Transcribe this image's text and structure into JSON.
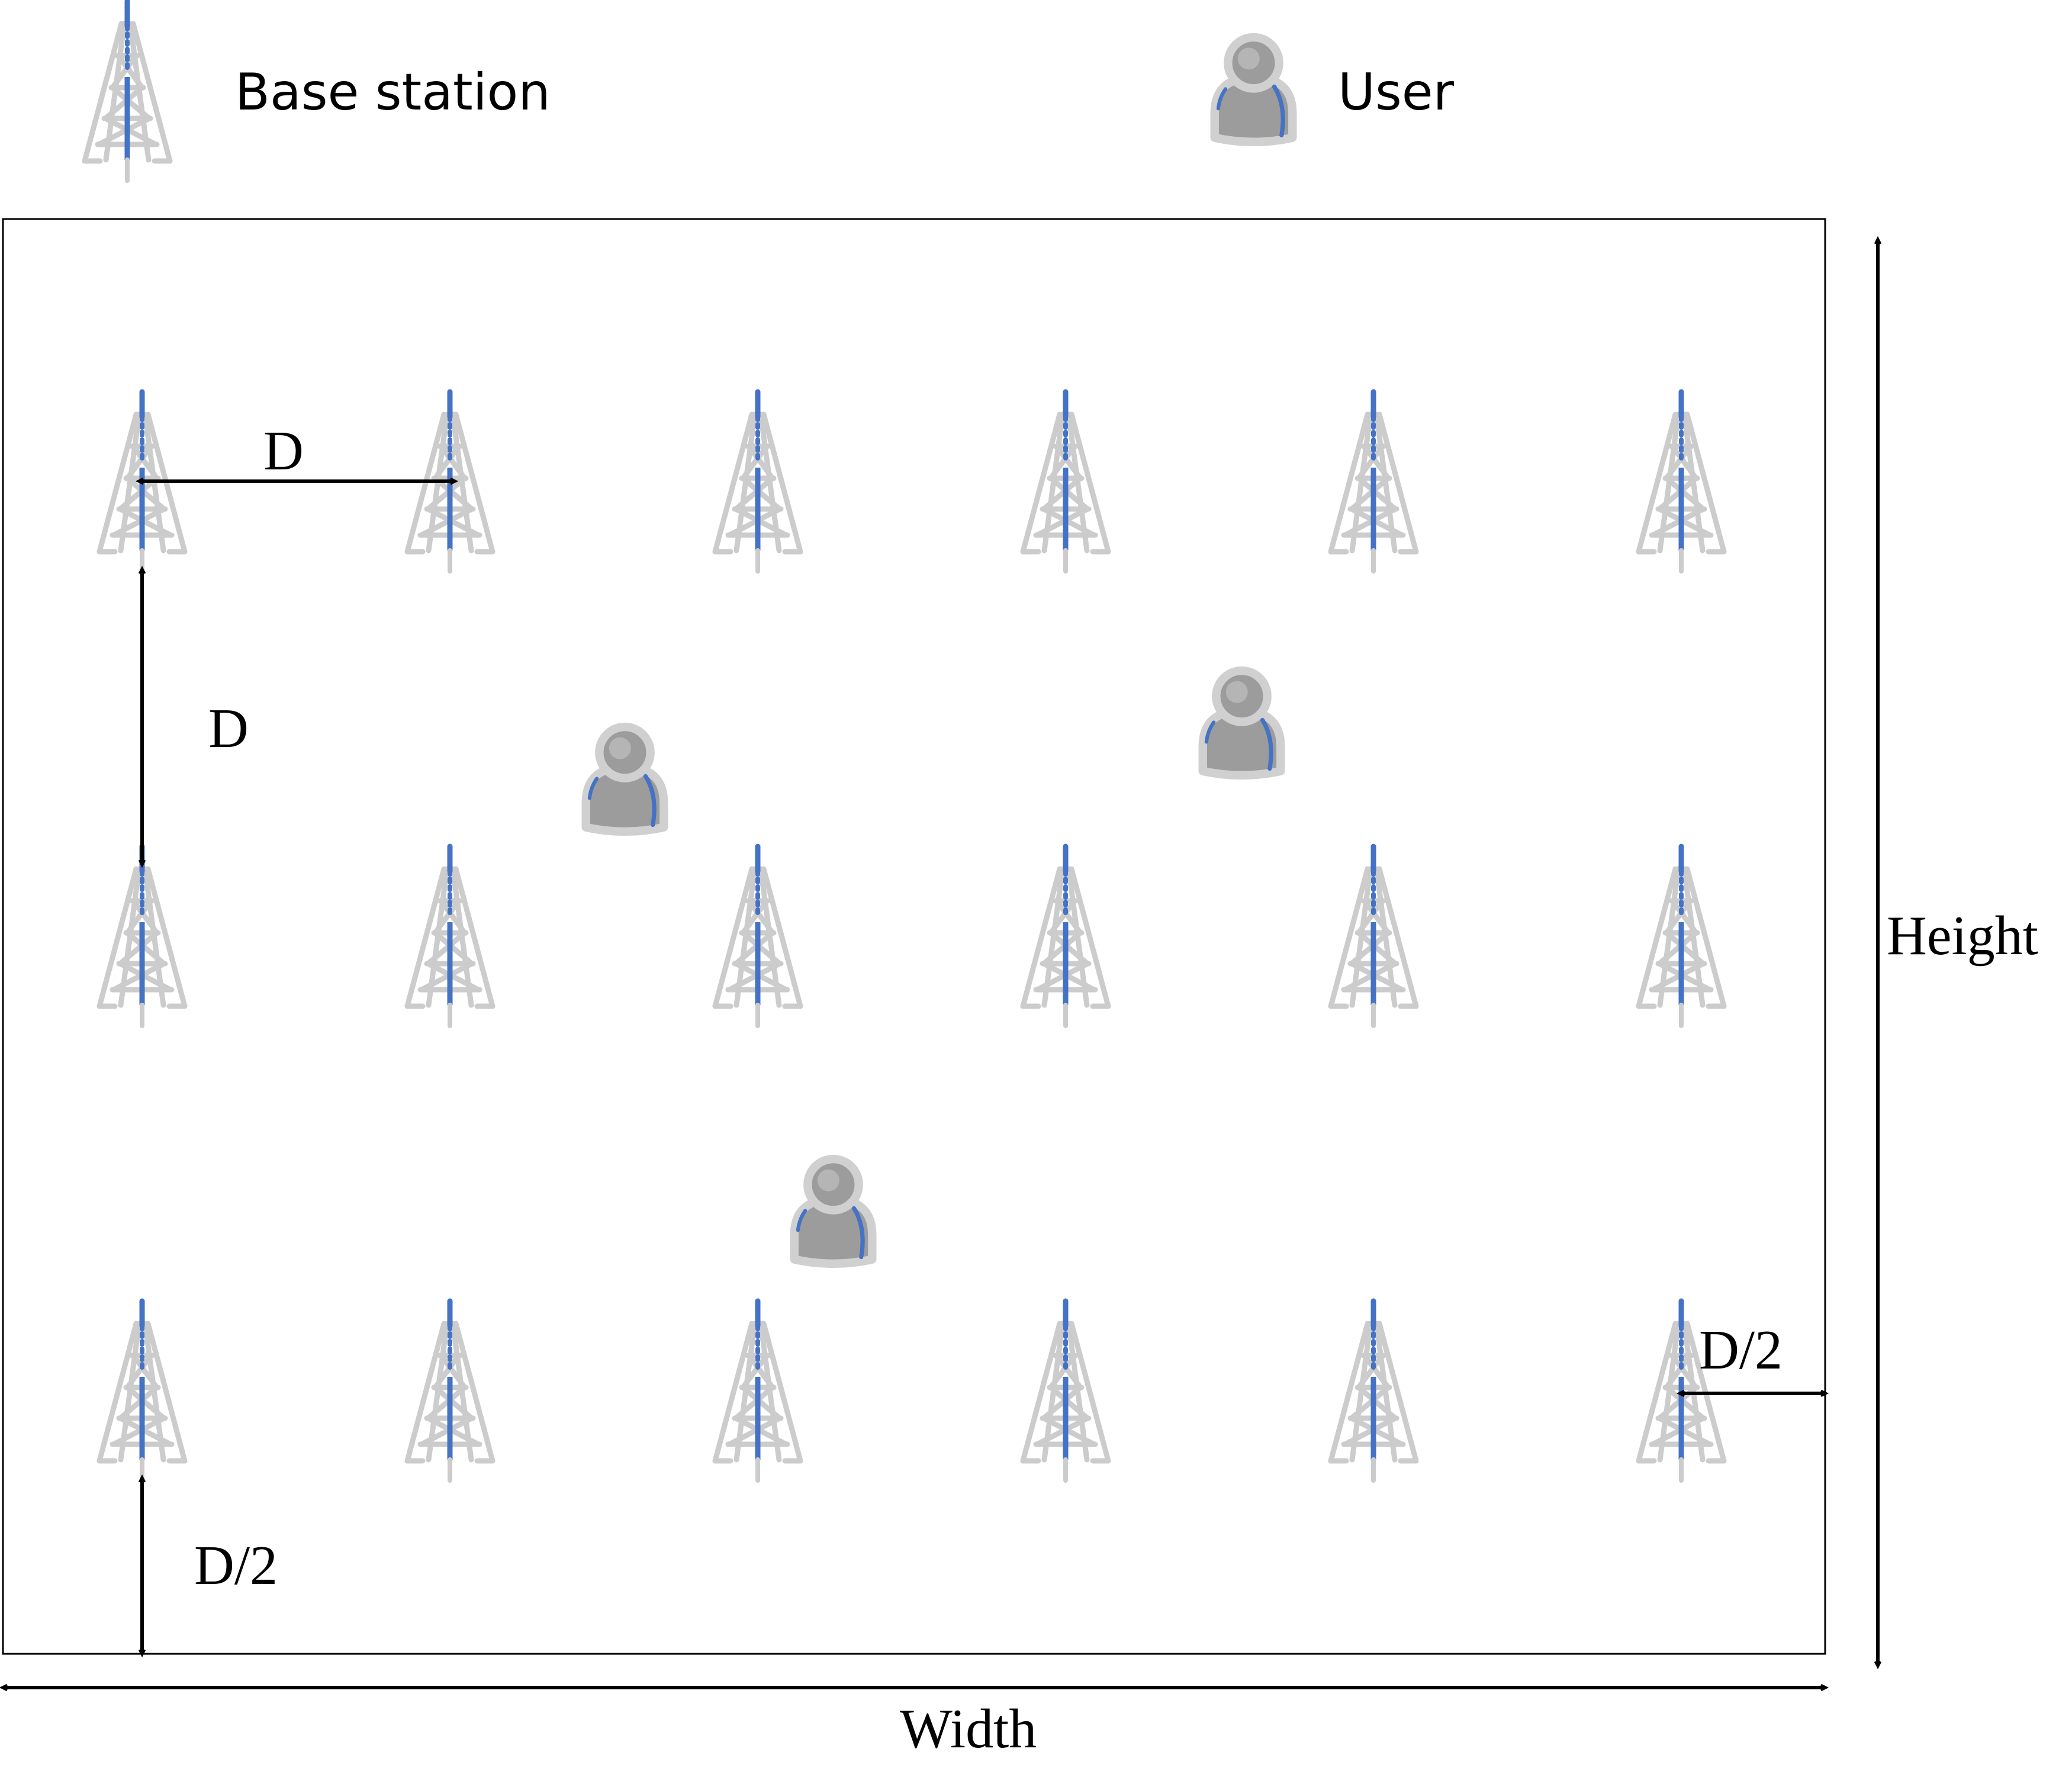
{
  "legend": {
    "base_station_label": "Base station",
    "user_label": "User"
  },
  "annotations": {
    "spacing_horizontal": "D",
    "spacing_vertical": "D",
    "edge_offset_right": "D/2",
    "edge_offset_bottom": "D/2",
    "width_label": "Width",
    "height_label": "Height"
  },
  "grid": {
    "rows": 3,
    "columns": 6
  },
  "users_count": 3,
  "colors": {
    "tower_frame": "#cccccc",
    "tower_mast": "#4472c4",
    "user_body": "#999999",
    "user_outline": "#cfcfcf",
    "user_accent": "#4472c4",
    "line": "#000000"
  }
}
